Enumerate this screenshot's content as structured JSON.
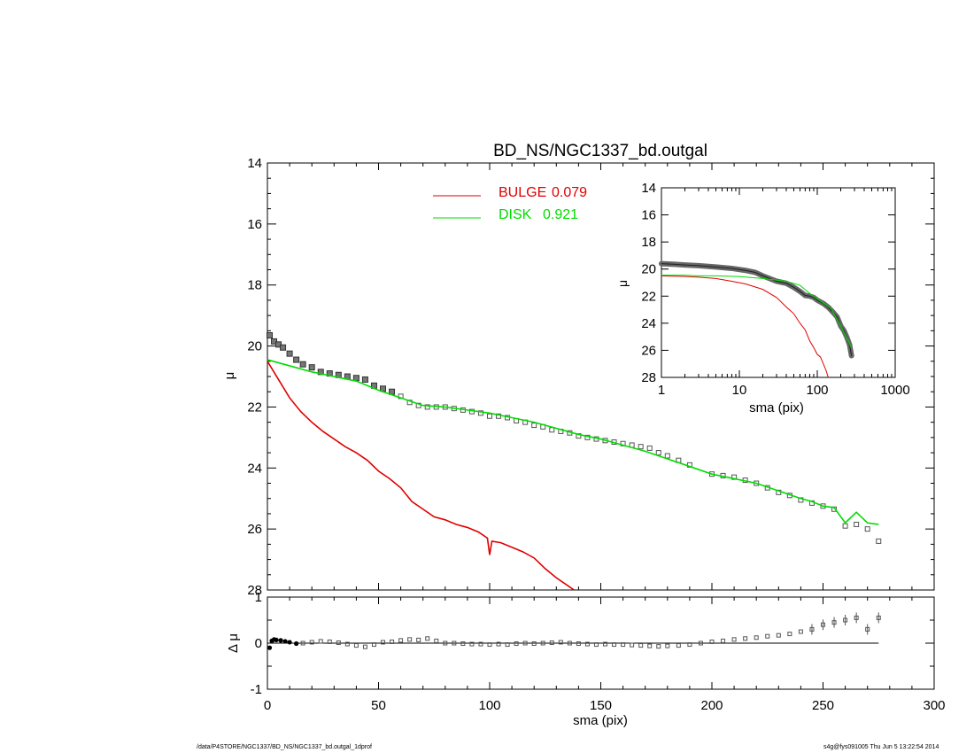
{
  "chart_data": [
    {
      "type": "line",
      "title": "BD_NS/NGC1337_bd.outgal",
      "xlabel": "sma (pix)",
      "ylabel": "μ",
      "xlim": [
        0,
        300
      ],
      "ylim": [
        28,
        14
      ],
      "x_ticks": [
        "0",
        "50",
        "100",
        "150",
        "200",
        "250",
        "300"
      ],
      "y_ticks": [
        "14",
        "16",
        "18",
        "20",
        "22",
        "24",
        "26",
        "28"
      ],
      "legend_position": "top-center",
      "series": [
        {
          "name": "BULGE 0.079",
          "label": "BULGE",
          "fraction": "0.079",
          "color": "#e00000",
          "x": [
            0,
            5,
            10,
            15,
            20,
            25,
            30,
            35,
            40,
            45,
            50,
            55,
            60,
            65,
            70,
            75,
            80,
            85,
            90,
            95,
            99,
            100,
            101,
            105,
            110,
            115,
            120,
            125,
            130,
            135,
            138
          ],
          "y": [
            20.5,
            21.1,
            21.7,
            22.15,
            22.5,
            22.8,
            23.05,
            23.3,
            23.5,
            23.75,
            24.1,
            24.35,
            24.65,
            25.1,
            25.35,
            25.6,
            25.7,
            25.85,
            25.95,
            26.1,
            26.3,
            26.85,
            26.4,
            26.45,
            26.6,
            26.75,
            26.95,
            27.3,
            27.6,
            27.85,
            28.0
          ]
        },
        {
          "name": "DISK 0.921",
          "label": "DISK",
          "fraction": "0.921",
          "color": "#00dd00",
          "x": [
            0,
            10,
            20,
            30,
            40,
            50,
            60,
            70,
            80,
            90,
            100,
            110,
            120,
            130,
            140,
            150,
            160,
            170,
            180,
            190,
            200,
            210,
            220,
            230,
            240,
            245,
            250,
            255,
            260,
            265,
            270,
            275
          ],
          "y": [
            20.45,
            20.65,
            20.85,
            21.0,
            21.15,
            21.45,
            21.7,
            21.95,
            22.0,
            22.1,
            22.2,
            22.35,
            22.5,
            22.7,
            22.9,
            23.05,
            23.25,
            23.45,
            23.7,
            23.95,
            24.2,
            24.35,
            24.5,
            24.75,
            25.0,
            25.1,
            25.25,
            25.3,
            25.8,
            25.45,
            25.8,
            25.85
          ]
        },
        {
          "name": "data",
          "marker": "square",
          "color": "#555555",
          "x": [
            1,
            3,
            5,
            7,
            10,
            13,
            16,
            20,
            24,
            28,
            32,
            36,
            40,
            44,
            48,
            52,
            56,
            60,
            64,
            68,
            72,
            76,
            80,
            84,
            88,
            92,
            96,
            100,
            104,
            108,
            112,
            116,
            120,
            124,
            128,
            132,
            136,
            140,
            144,
            148,
            152,
            156,
            160,
            164,
            168,
            172,
            176,
            180,
            185,
            190,
            200,
            205,
            210,
            215,
            220,
            225,
            230,
            235,
            240,
            245,
            250,
            255,
            260,
            265,
            270,
            275
          ],
          "y": [
            19.65,
            19.85,
            19.95,
            20.05,
            20.25,
            20.45,
            20.6,
            20.7,
            20.85,
            20.9,
            20.95,
            21.0,
            21.05,
            21.1,
            21.3,
            21.4,
            21.5,
            21.65,
            21.85,
            21.95,
            22.0,
            22.0,
            22.0,
            22.05,
            22.1,
            22.15,
            22.2,
            22.3,
            22.3,
            22.35,
            22.45,
            22.5,
            22.6,
            22.65,
            22.75,
            22.8,
            22.85,
            22.95,
            23.0,
            23.05,
            23.1,
            23.15,
            23.2,
            23.25,
            23.3,
            23.35,
            23.5,
            23.6,
            23.75,
            23.9,
            24.2,
            24.25,
            24.3,
            24.4,
            24.5,
            24.65,
            24.8,
            24.9,
            25.05,
            25.15,
            25.25,
            25.35,
            25.9,
            25.85,
            26.0,
            26.4
          ]
        }
      ]
    },
    {
      "type": "line",
      "xlabel": "sma (pix)",
      "ylabel": "μ",
      "xscale": "log",
      "xlim": [
        1,
        1000
      ],
      "ylim": [
        28,
        14
      ],
      "x_ticks": [
        "1",
        "10",
        "100",
        "1000"
      ],
      "y_ticks": [
        "14",
        "16",
        "18",
        "20",
        "22",
        "24",
        "26",
        "28"
      ],
      "series": [
        {
          "name": "BULGE",
          "color": "#e00000",
          "x": [
            1,
            2,
            3,
            5,
            8,
            12,
            20,
            30,
            40,
            50,
            60,
            70,
            80,
            90,
            100,
            110,
            130,
            138
          ],
          "y": [
            20.5,
            20.55,
            20.6,
            20.7,
            20.9,
            21.1,
            21.5,
            22.1,
            22.8,
            23.3,
            24.0,
            24.5,
            25.3,
            25.8,
            26.3,
            26.5,
            27.5,
            28.0
          ]
        },
        {
          "name": "DISK",
          "color": "#00dd00",
          "x": [
            1,
            2,
            3,
            5,
            10,
            20,
            40,
            60,
            80,
            100,
            150,
            200,
            250,
            275
          ],
          "y": [
            20.45,
            20.45,
            20.5,
            20.5,
            20.55,
            20.7,
            20.9,
            21.2,
            21.8,
            22.2,
            22.9,
            24.2,
            25.3,
            25.85
          ]
        },
        {
          "name": "data",
          "color": "#555555",
          "x": [
            1,
            1.5,
            2,
            3,
            5,
            8,
            12,
            16,
            20,
            30,
            40,
            50,
            60,
            70,
            80,
            90,
            100,
            120,
            140,
            160,
            180,
            200,
            220,
            240,
            260,
            275
          ],
          "y": [
            19.6,
            19.65,
            19.7,
            19.75,
            19.85,
            19.95,
            20.1,
            20.25,
            20.5,
            20.9,
            21.05,
            21.35,
            21.65,
            21.95,
            22.0,
            22.1,
            22.3,
            22.55,
            22.85,
            23.2,
            23.55,
            24.2,
            24.55,
            25.05,
            25.6,
            26.4
          ]
        }
      ]
    },
    {
      "type": "scatter",
      "xlabel": "sma (pix)",
      "ylabel": "Δ μ",
      "xlim": [
        0,
        300
      ],
      "ylim": [
        -1,
        1
      ],
      "x_ticks": [
        "0",
        "50",
        "100",
        "150",
        "200",
        "250",
        "300"
      ],
      "y_ticks": [
        "-1",
        "0",
        "1"
      ],
      "series": [
        {
          "name": "residual",
          "color": "#555555",
          "x": [
            1,
            2,
            3,
            4,
            6,
            8,
            10,
            13,
            16,
            20,
            24,
            28,
            32,
            36,
            40,
            44,
            48,
            52,
            56,
            60,
            64,
            68,
            72,
            76,
            80,
            84,
            88,
            92,
            96,
            100,
            104,
            108,
            112,
            116,
            120,
            124,
            128,
            132,
            136,
            140,
            144,
            148,
            152,
            156,
            160,
            164,
            168,
            172,
            176,
            180,
            185,
            190,
            195,
            200,
            205,
            210,
            215,
            220,
            225,
            230,
            235,
            240,
            245,
            250,
            255,
            260,
            265,
            270,
            275
          ],
          "y": [
            -0.1,
            0.05,
            0.08,
            0.07,
            0.06,
            0.04,
            0.02,
            -0.01,
            0.0,
            0.02,
            0.04,
            0.03,
            0.01,
            -0.02,
            -0.05,
            -0.08,
            -0.03,
            0.02,
            0.03,
            0.06,
            0.08,
            0.07,
            0.1,
            0.05,
            0.0,
            0.0,
            -0.01,
            -0.02,
            -0.02,
            -0.03,
            -0.02,
            -0.03,
            -0.01,
            0.0,
            -0.01,
            0.0,
            0.01,
            0.02,
            0.0,
            -0.01,
            -0.02,
            -0.03,
            -0.02,
            -0.03,
            -0.03,
            -0.04,
            -0.05,
            -0.06,
            -0.07,
            -0.06,
            -0.05,
            -0.03,
            0.0,
            0.03,
            0.05,
            0.08,
            0.1,
            0.12,
            0.15,
            0.17,
            0.2,
            0.25,
            0.3,
            0.4,
            0.45,
            0.5,
            0.55,
            0.3,
            0.55
          ]
        }
      ]
    }
  ],
  "footer": {
    "path": "/data/P4STORE/NGC1337/BD_NS/NGC1337_bd.outgal_1dprof",
    "stamp": "s4g@fys091005  Thu Jun  5 13:22:54 2014"
  }
}
